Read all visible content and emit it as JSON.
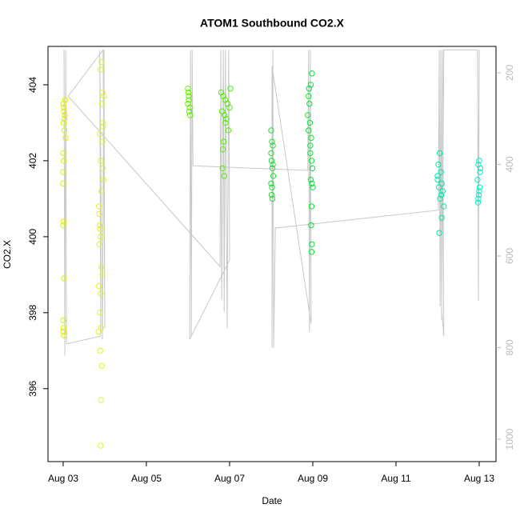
{
  "chart_data": {
    "type": "scatter",
    "title": "ATOM1 Southbound CO2.X",
    "xlabel": "Date",
    "ylabel": "CO2.X",
    "xlim": [
      2.635,
      13.404
    ],
    "ylim": [
      394.08,
      405.01
    ],
    "y2lim": [
      1048.9,
      142.4
    ],
    "xticks": [
      {
        "value": 3,
        "label": "Aug 03"
      },
      {
        "value": 5,
        "label": "Aug 05"
      },
      {
        "value": 7,
        "label": "Aug 07"
      },
      {
        "value": 9,
        "label": "Aug 09"
      },
      {
        "value": 11,
        "label": "Aug 11"
      },
      {
        "value": 13,
        "label": "Aug 13"
      }
    ],
    "yticks": [
      396,
      398,
      400,
      402,
      404
    ],
    "y2ticks": [
      200,
      400,
      600,
      800,
      1000
    ],
    "series": [
      {
        "axis": "y2",
        "color": "#c8c8c8",
        "x": [
          3.02,
          3.04,
          3.06,
          3.08,
          3.9,
          3.88,
          3.94,
          3.98,
          4.0,
          3.96,
          3.12,
          6.77,
          6.79,
          6.81,
          6.85,
          6.87,
          6.9,
          6.94,
          6.98,
          7.0,
          6.04,
          6.06,
          6.08,
          6.1,
          6.12,
          8.88,
          8.9,
          8.92,
          8.94,
          8.96,
          8.02,
          8.02,
          8.04,
          8.06,
          8.1,
          12.02,
          12.04,
          12.06,
          12.08,
          12.1,
          12.12,
          12.15,
          12.1,
          12.15,
          12.96,
          12.98,
          13.0,
          12.98
        ],
        "values": [
          150,
          818,
          150,
          792,
          775,
          150,
          783,
          150,
          757,
          150,
          251,
          623,
          150,
          696,
          150,
          722,
          150,
          757,
          150,
          609,
          782,
          150,
          775,
          150,
          403,
          413,
          150,
          766,
          150,
          748,
          186,
          800,
          150,
          801,
          539,
          500,
          150,
          710,
          150,
          740,
          150,
          775,
          720,
          150,
          150,
          698,
          150,
          455
        ]
      },
      {
        "color": "#dcf000",
        "x": [
          3.0,
          3.02,
          3.04,
          3.01,
          3.03,
          3.05,
          3.02,
          3.06,
          3.0,
          3.01,
          3.0,
          3.0,
          3.01,
          3.0,
          3.02,
          3.0,
          3.01,
          3.0,
          3.02,
          3.03
        ],
        "values": [
          403.5,
          403.4,
          403.2,
          403.0,
          402.8,
          403.6,
          403.3,
          402.6,
          402.2,
          402.0,
          401.7,
          401.4,
          400.4,
          400.3,
          398.9,
          397.8,
          397.6,
          397.5,
          397.4,
          403.1
        ]
      },
      {
        "color": "#e3f22a",
        "x": [
          3.92,
          3.9,
          3.95,
          3.98,
          3.93,
          3.96,
          3.88,
          3.94,
          3.9,
          3.97,
          3.92,
          3.86,
          3.88,
          3.89,
          3.9,
          3.87,
          3.92,
          3.94,
          3.86,
          3.9,
          3.88,
          3.91,
          3.85,
          3.89,
          3.93,
          3.91,
          3.9,
          3.95,
          3.96,
          3.87
        ],
        "values": [
          404.6,
          404.4,
          403.8,
          403.7,
          403.5,
          403.0,
          402.7,
          402.5,
          402.0,
          401.5,
          401.2,
          400.8,
          400.3,
          400.2,
          400.0,
          399.8,
          399.2,
          399.0,
          398.7,
          398.5,
          398.0,
          397.6,
          397.5,
          397.0,
          396.6,
          395.7,
          394.5,
          401.8,
          402.9,
          400.6
        ]
      },
      {
        "color": "#66ee00",
        "x": [
          6.0,
          6.01,
          6.02,
          6.0,
          6.03,
          6.05,
          6.02,
          6.04
        ],
        "values": [
          403.9,
          403.8,
          403.7,
          403.5,
          403.3,
          403.2,
          403.6,
          403.4
        ]
      },
      {
        "color": "#4cf000",
        "x": [
          6.8,
          6.85,
          6.9,
          6.95,
          7.0,
          6.82,
          6.88,
          6.92,
          6.97,
          6.86,
          6.84,
          7.02,
          6.9,
          6.83,
          6.87
        ],
        "values": [
          403.8,
          403.7,
          403.6,
          403.5,
          403.4,
          403.3,
          403.2,
          403.1,
          402.8,
          402.5,
          402.3,
          403.9,
          403.0,
          401.8,
          401.6
        ]
      },
      {
        "color": "#22dd33",
        "x": [
          8.0,
          8.02,
          8.04,
          8.01,
          8.03,
          8.05,
          8.0,
          8.02,
          8.01,
          8.03,
          8.0,
          8.04
        ],
        "values": [
          402.8,
          402.5,
          402.4,
          402.0,
          401.8,
          401.6,
          401.4,
          401.3,
          401.1,
          401.0,
          402.2,
          401.9
        ]
      },
      {
        "color": "#00e834",
        "x": [
          8.98,
          8.95,
          8.9,
          8.92,
          8.88,
          8.93,
          8.9,
          8.96,
          8.94,
          8.97,
          8.99,
          8.95,
          8.98,
          9.0,
          8.97,
          8.96,
          8.98,
          8.97,
          8.91,
          8.94
        ],
        "values": [
          404.3,
          404.0,
          403.7,
          403.5,
          403.2,
          403.0,
          402.8,
          402.6,
          402.4,
          402.0,
          401.8,
          401.5,
          401.4,
          401.3,
          400.8,
          400.3,
          399.8,
          399.6,
          403.9,
          402.2
        ]
      },
      {
        "color": "#00e8a8",
        "x": [
          12.05,
          12.02,
          12.08,
          12.0,
          12.1,
          12.03,
          12.12,
          12.06,
          12.15,
          12.1,
          12.04,
          12.0,
          12.09
        ],
        "values": [
          402.2,
          401.9,
          401.7,
          401.5,
          401.4,
          401.3,
          401.2,
          401.0,
          400.8,
          400.5,
          400.1,
          401.6,
          401.1
        ]
      },
      {
        "color": "#00f0c4",
        "x": [
          13.0,
          12.98,
          13.02,
          12.96,
          13.01,
          12.99,
          12.97,
          13.03,
          13.0,
          12.98
        ],
        "values": [
          402.0,
          401.9,
          401.7,
          401.5,
          401.3,
          401.1,
          400.9,
          401.8,
          401.2,
          401.0
        ]
      }
    ]
  }
}
